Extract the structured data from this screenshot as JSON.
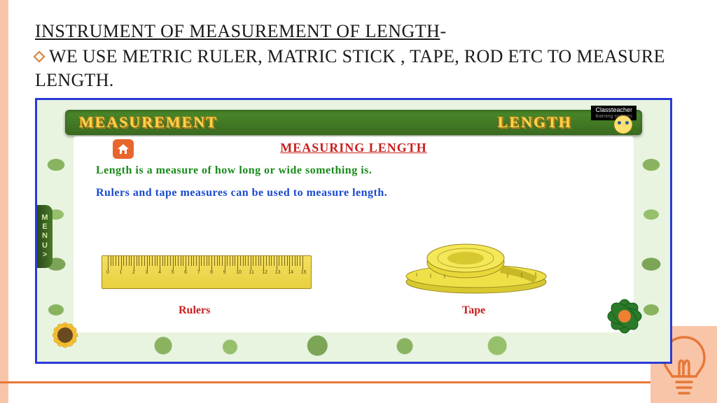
{
  "slide": {
    "title_underlined": "INSTRUMENT OF MEASUREMENT OF LENGTH",
    "title_suffix": "-",
    "bullet_text": "WE USE METRIC RULER, MATRIC STICK , TAPE, ROD ETC TO MEASURE LENGTH."
  },
  "embed": {
    "header_left": "MEASUREMENT",
    "header_right": "LENGTH",
    "brand": "Classteacher",
    "brand_sub": "learning systems",
    "subtitle": "MEASURING LENGTH",
    "line1": "Length is a measure of how long or wide something is.",
    "line2": "Rulers and tape measures can be used to measure length.",
    "label_ruler": "Rulers",
    "label_tape": "Tape",
    "menu": "MENU>",
    "ruler_ticks": [
      0,
      1,
      2,
      3,
      4,
      5,
      6,
      7,
      8,
      9,
      10,
      11,
      12,
      13,
      14,
      15
    ]
  },
  "colors": {
    "accent_orange": "#e67837",
    "peach": "#f9c5a8",
    "frame_blue": "#2a3bd6",
    "header_green": "#4a8a2a",
    "header_yellow": "#f7d64a",
    "red_text": "#c82020",
    "green_text": "#1a8a1a",
    "blue_text": "#1a4ad0",
    "ruler_yellow": "#f0da50",
    "tape_yellow": "#e8d838"
  }
}
